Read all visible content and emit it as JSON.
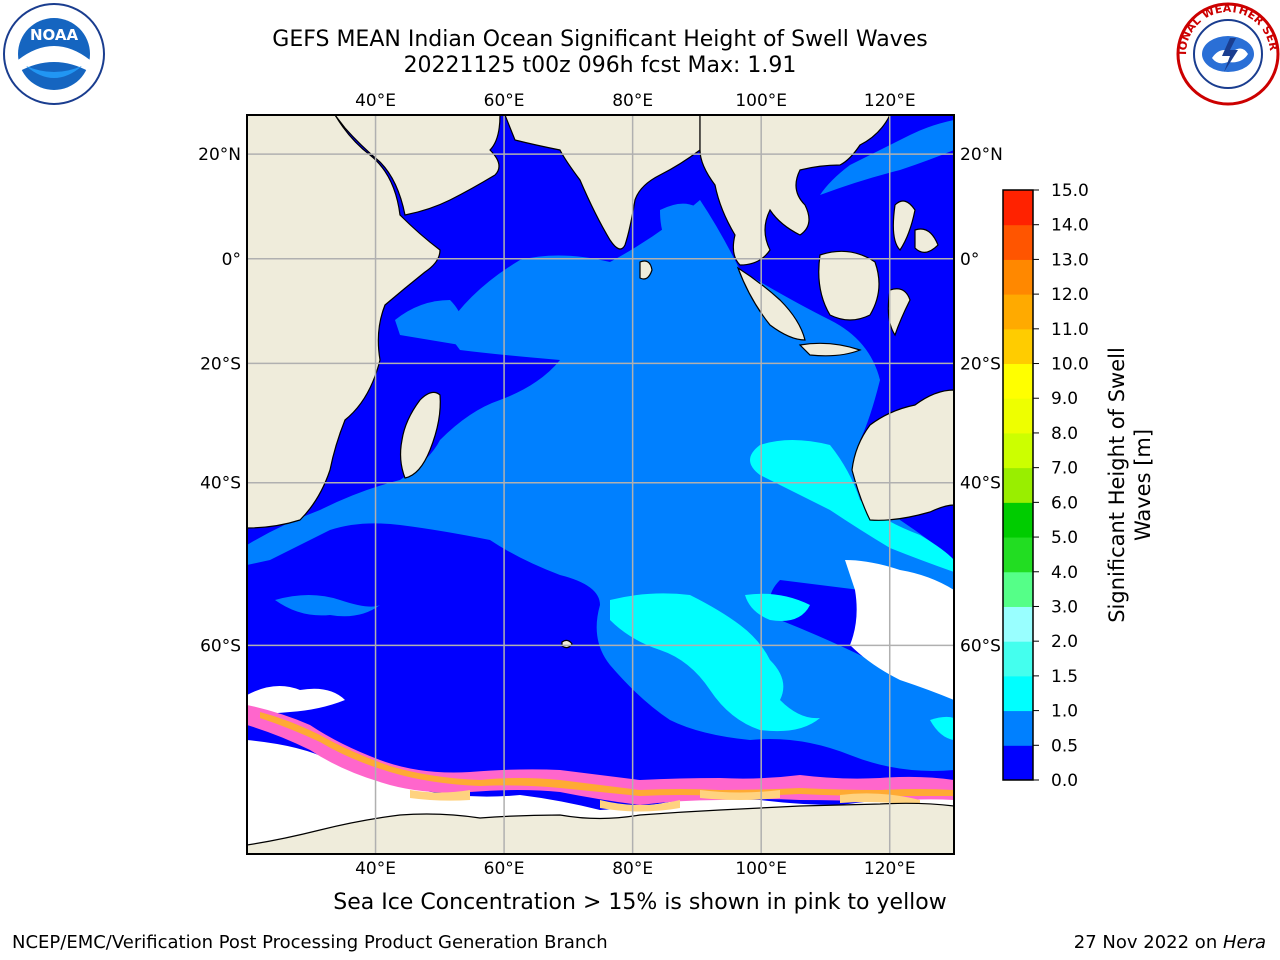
{
  "title": {
    "line1": "GEFS MEAN Indian Ocean Significant Height of Swell Waves",
    "line2": "20221125 t00z 096h fcst   Max: 1.91"
  },
  "map": {
    "lon_ticks": [
      "40°E",
      "60°E",
      "80°E",
      "100°E",
      "120°E"
    ],
    "lat_ticks": [
      "20°N",
      "0°",
      "20°S",
      "40°S",
      "60°S"
    ],
    "extent": {
      "lon": [
        20,
        130
      ],
      "lat": [
        -75,
        27
      ]
    },
    "grid": true,
    "colors": {
      "land": "#efecdb",
      "ocean_0_05": "#0000ff",
      "ocean_05_10": "#0080ff",
      "ocean_10_15": "#00ffff",
      "ice": "#ffffff",
      "sea_ice": [
        "#ff66cc",
        "#ff3399",
        "#ffaa33",
        "#ffd27f"
      ]
    }
  },
  "colorbar": {
    "label_line1": "Significant Height of Swell",
    "label_line2": "Waves [m]",
    "ticks": [
      "0.0",
      "0.5",
      "1.0",
      "1.5",
      "2.0",
      "3.0",
      "4.0",
      "5.0",
      "6.0",
      "7.0",
      "8.0",
      "9.0",
      "10.0",
      "11.0",
      "12.0",
      "13.0",
      "14.0",
      "15.0"
    ],
    "colors": [
      "#0000ff",
      "#0080ff",
      "#00ffff",
      "#44ffee",
      "#99ffff",
      "#55ff88",
      "#22dd22",
      "#00cc00",
      "#99ee00",
      "#ccff00",
      "#eeff00",
      "#ffff00",
      "#ffcc00",
      "#ffaa00",
      "#ff8800",
      "#ff5500",
      "#ff2200",
      "#ff0000"
    ]
  },
  "note": "Sea Ice Concentration > 15% is shown in pink to yellow",
  "footer": {
    "left": "NCEP/EMC/Verification Post Processing Product Generation Branch",
    "date": "27 Nov 2022 on ",
    "host": "Hera"
  },
  "logos": {
    "left": {
      "icon": "noaa-logo",
      "text": "NOAA"
    },
    "right": {
      "icon": "nws-logo",
      "text": "NATIONAL WEATHER SERVICE"
    }
  }
}
